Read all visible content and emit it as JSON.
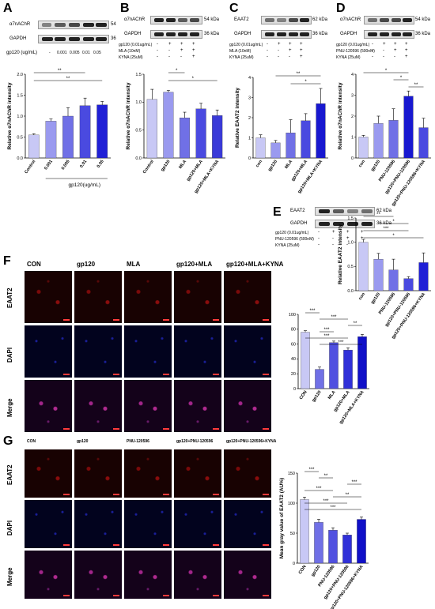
{
  "panels": {
    "A": {
      "letter": "A",
      "blots": [
        {
          "label": "α7nAChR",
          "kda": "54"
        },
        {
          "label": "GAPDH",
          "kda": "36"
        }
      ],
      "treat_label": "gp120 (ug/mL)",
      "treat_values": [
        "-",
        "0.001",
        "0.005",
        "0.01",
        "0.05"
      ]
    },
    "B": {
      "letter": "B",
      "blots": [
        {
          "label": "α7nAChR",
          "kda": "54 kDa"
        },
        {
          "label": "GAPDH",
          "kda": "36 kDa"
        }
      ],
      "cond_rows": [
        {
          "label": "gp120 (0.01ug/mL)",
          "signs": [
            "-",
            "+",
            "+",
            "+"
          ]
        },
        {
          "label": "MLA (10nM)",
          "signs": [
            "-",
            "-",
            "+",
            "+"
          ]
        },
        {
          "label": "KYNA (25uM)",
          "signs": [
            "-",
            "-",
            "-",
            "+"
          ]
        }
      ]
    },
    "C": {
      "letter": "C",
      "blots": [
        {
          "label": "EAAT2",
          "kda": "62 kDa"
        },
        {
          "label": "GAPDH",
          "kda": "36 kDa"
        }
      ],
      "cond_rows": [
        {
          "label": "gp120 (0.01ug/mL)",
          "signs": [
            "-",
            "+",
            "+",
            "+"
          ]
        },
        {
          "label": "MLA (10nM)",
          "signs": [
            "-",
            "-",
            "+",
            "+"
          ]
        },
        {
          "label": "KYNA (25uM)",
          "signs": [
            "-",
            "-",
            "-",
            "+"
          ]
        }
      ]
    },
    "D": {
      "letter": "D",
      "blots": [
        {
          "label": "α7nAChR",
          "kda": "54 kDa"
        },
        {
          "label": "GAPDH",
          "kda": "36 kDa"
        }
      ],
      "cond_rows": [
        {
          "label": "gp120 (0.01ug/mL)",
          "signs": [
            "-",
            "+",
            "+",
            "+"
          ]
        },
        {
          "label": "PNU-120596 (500nM)",
          "signs": [
            "-",
            "-",
            "+",
            "+"
          ]
        },
        {
          "label": "KYNA (25uM)",
          "signs": [
            "-",
            "-",
            "-",
            "+"
          ]
        }
      ]
    },
    "E": {
      "letter": "E",
      "blots": [
        {
          "label": "EAAT2",
          "kda": "62 kDa"
        },
        {
          "label": "GAPDH",
          "kda": "36 kDa"
        }
      ],
      "cond_rows": [
        {
          "label": "gp120 (0.01ug/mL)",
          "signs": [
            "-",
            "+",
            "+",
            "+"
          ]
        },
        {
          "label": "PNU-120596 (500nM)",
          "signs": [
            "-",
            "-",
            "+",
            "+"
          ]
        },
        {
          "label": "KYNA (25uM)",
          "signs": [
            "-",
            "-",
            "-",
            "+"
          ]
        }
      ]
    },
    "F": {
      "letter": "F",
      "columns": [
        "CON",
        "gp120",
        "MLA",
        "gp120+MLA",
        "gp120+MLA+KYNA"
      ],
      "rows": [
        "EAAT2",
        "DAPI",
        "Merge"
      ],
      "scale": "50μm"
    },
    "G": {
      "letter": "G",
      "columns": [
        "CON",
        "gp120",
        "PNU-120596",
        "gp120+PNU-120596",
        "gp120+PNU-120596+KYNA"
      ],
      "rows": [
        "EAAT2",
        "DAPI",
        "Merge"
      ],
      "scale": "50μm"
    }
  },
  "chart_data": [
    {
      "id": "A",
      "type": "bar",
      "categories": [
        "Control",
        "0.001",
        "0.005",
        "0.01",
        "0.05"
      ],
      "values": [
        0.55,
        0.88,
        1.0,
        1.25,
        1.27
      ],
      "errors": [
        0.03,
        0.05,
        0.2,
        0.18,
        0.08
      ],
      "ylabel": "Relative α7nAChR intensity",
      "xlabel": "gp120(ug/mL)",
      "ylim": [
        0,
        2.0
      ],
      "yticks": [
        0.0,
        0.5,
        1.0,
        1.5,
        2.0
      ],
      "yticklabels": [
        "0.0",
        "0.5",
        "1.0",
        "1.5",
        "2.0"
      ],
      "colors": [
        "#c8c8f5",
        "#9a9aef",
        "#7070e6",
        "#4a4ae0",
        "#2020d6"
      ],
      "sig": [
        {
          "from": 0,
          "to": 3,
          "label": "**"
        },
        {
          "from": 0,
          "to": 4,
          "label": "**"
        }
      ]
    },
    {
      "id": "B",
      "type": "bar",
      "categories": [
        "Control",
        "gp120",
        "MLA",
        "gp120+MLA",
        "gp120+MLA+KYNA"
      ],
      "values": [
        1.05,
        1.18,
        0.72,
        0.88,
        0.76
      ],
      "errors": [
        0.18,
        0.03,
        0.1,
        0.1,
        0.1
      ],
      "ylabel": "Relative α7nAChR intensity",
      "ylim": [
        0,
        1.5
      ],
      "yticks": [
        0.0,
        0.5,
        1.0,
        1.5
      ],
      "yticklabels": [
        "0.0",
        "0.5",
        "1.0",
        "1.5"
      ],
      "colors": [
        "#c8c8f5",
        "#9a9aef",
        "#7070e6",
        "#4a4ae0",
        "#3a3ad8"
      ],
      "sig": [
        {
          "from": 1,
          "to": 2,
          "label": "*"
        },
        {
          "from": 1,
          "to": 4,
          "label": "*"
        }
      ]
    },
    {
      "id": "C",
      "type": "bar",
      "categories": [
        "con",
        "gp120",
        "MLA",
        "gp120+MLA",
        "gp120+MLA+KYNA"
      ],
      "values": [
        1.0,
        0.75,
        1.25,
        1.85,
        2.7
      ],
      "errors": [
        0.15,
        0.12,
        0.65,
        0.35,
        0.75
      ],
      "ylabel": "Relative EAAT2 intensity",
      "ylim": [
        0,
        4
      ],
      "yticks": [
        0,
        1,
        2,
        3,
        4
      ],
      "yticklabels": [
        "0",
        "1",
        "2",
        "3",
        "4"
      ],
      "colors": [
        "#c8c8f5",
        "#9a9aef",
        "#7070e6",
        "#4a4ae0",
        "#1818d0"
      ],
      "sig": [
        {
          "from": 1,
          "to": 4,
          "label": "**"
        },
        {
          "from": 2,
          "to": 4,
          "label": "*"
        }
      ]
    },
    {
      "id": "D",
      "type": "bar",
      "categories": [
        "con",
        "gp120",
        "PNU-120596",
        "gp120+PNU-120596",
        "gp120+PNU-120596+KYNA"
      ],
      "values": [
        1.0,
        1.65,
        1.8,
        2.95,
        1.45
      ],
      "errors": [
        0.08,
        0.35,
        0.55,
        0.25,
        0.45
      ],
      "ylabel": "Relative α7nAChR intensity",
      "ylim": [
        0,
        4
      ],
      "yticks": [
        0,
        1,
        2,
        3,
        4
      ],
      "yticklabels": [
        "0",
        "1",
        "2",
        "3",
        "4"
      ],
      "colors": [
        "#c8c8f5",
        "#9a9aef",
        "#7070e6",
        "#1818d0",
        "#4a4ae0"
      ],
      "sig": [
        {
          "from": 0,
          "to": 3,
          "label": "*"
        },
        {
          "from": 2,
          "to": 3,
          "label": "*"
        },
        {
          "from": 3,
          "to": 4,
          "label": "**"
        }
      ]
    },
    {
      "id": "E",
      "type": "bar",
      "categories": [
        "con",
        "gp120",
        "PNU-120596",
        "gp120+PNU-120596",
        "gp120+PNU-120596+KYNA"
      ],
      "values": [
        1.0,
        0.65,
        0.43,
        0.25,
        0.58
      ],
      "errors": [
        0.06,
        0.12,
        0.22,
        0.04,
        0.2
      ],
      "ylabel": "Relative EAAT2 intensity",
      "ylim": [
        0,
        1.5
      ],
      "yticks": [
        0.0,
        0.5,
        1.0,
        1.5
      ],
      "yticklabels": [
        "0.0",
        "0.5",
        "1.0",
        "1.5"
      ],
      "colors": [
        "#c8c8f5",
        "#9a9aef",
        "#7070e6",
        "#4a4ae0",
        "#2020d6"
      ],
      "sig": [
        {
          "from": 0,
          "to": 2,
          "label": "**"
        },
        {
          "from": 1,
          "to": 3,
          "label": "*"
        },
        {
          "from": 0,
          "to": 3,
          "label": "***"
        },
        {
          "from": 0,
          "to": 4,
          "label": "*"
        }
      ]
    },
    {
      "id": "F",
      "type": "bar",
      "categories": [
        "CON",
        "gp120",
        "MLA",
        "gp120+MLA",
        "gp120+MLA+KYNA"
      ],
      "values": [
        76,
        26,
        62,
        52,
        70
      ],
      "errors": [
        2,
        3,
        2,
        3,
        3
      ],
      "ylabel": "",
      "ylim": [
        0,
        100
      ],
      "yticks": [
        0,
        20,
        40,
        60,
        80,
        100
      ],
      "yticklabels": [
        "0",
        "20",
        "40",
        "60",
        "80",
        "100"
      ],
      "colors": [
        "#c8c8f5",
        "#7070e6",
        "#5050e0",
        "#3030d8",
        "#1010c8"
      ],
      "sig": [
        {
          "from": 0,
          "to": 1,
          "label": "***"
        },
        {
          "from": 1,
          "to": 3,
          "label": "***"
        },
        {
          "from": 3,
          "to": 4,
          "label": "**"
        },
        {
          "from": 1,
          "to": 2,
          "label": "***"
        },
        {
          "from": 0,
          "to": 3,
          "label": "***"
        },
        {
          "from": 1,
          "to": 4,
          "label": "***"
        }
      ]
    },
    {
      "id": "G",
      "type": "bar",
      "categories": [
        "CON",
        "gp120",
        "PNU-120596",
        "gp120+PNU-120596",
        "gp120+PNU-120596+KYNA"
      ],
      "values": [
        106,
        68,
        55,
        47,
        73
      ],
      "errors": [
        4,
        5,
        4,
        3,
        4
      ],
      "ylabel": "Mean gray value of EAAT2 (AU%)",
      "ylim": [
        0,
        150
      ],
      "yticks": [
        0,
        50,
        100,
        150
      ],
      "yticklabels": [
        "0",
        "50",
        "100",
        "150"
      ],
      "colors": [
        "#c8c8f5",
        "#7070e6",
        "#5050e0",
        "#3030d8",
        "#1010c8"
      ],
      "sig": [
        {
          "from": 0,
          "to": 1,
          "label": "***"
        },
        {
          "from": 1,
          "to": 2,
          "label": "**"
        },
        {
          "from": 3,
          "to": 4,
          "label": "***"
        },
        {
          "from": 0,
          "to": 2,
          "label": "***"
        },
        {
          "from": 2,
          "to": 4,
          "label": "**"
        },
        {
          "from": 0,
          "to": 3,
          "label": "***"
        },
        {
          "from": 0,
          "to": 4,
          "label": "***"
        }
      ]
    }
  ]
}
